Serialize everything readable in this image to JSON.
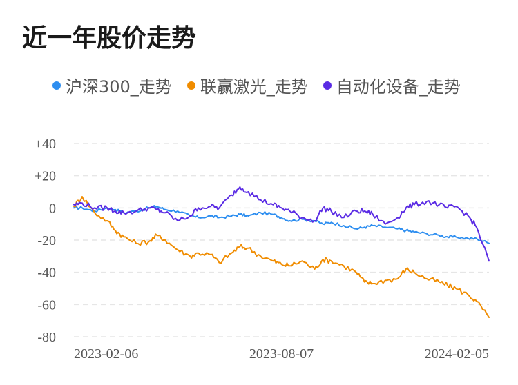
{
  "title": "近一年股价走势",
  "colors": {
    "series_0": "#2d8ef0",
    "series_1": "#f08c00",
    "series_2": "#5a2be4",
    "grid": "#e6e6e6"
  },
  "chart_data": {
    "type": "line",
    "title": "近一年股价走势",
    "xlabel": "",
    "ylabel": "",
    "x_ticks": [
      "2023-02-06",
      "2023-08-07",
      "2024-02-05"
    ],
    "x": [
      0,
      0.02,
      0.05,
      0.08,
      0.1,
      0.12,
      0.15,
      0.18,
      0.2,
      0.22,
      0.25,
      0.28,
      0.3,
      0.33,
      0.35,
      0.38,
      0.4,
      0.42,
      0.45,
      0.48,
      0.5,
      0.52,
      0.55,
      0.58,
      0.6,
      0.62,
      0.65,
      0.68,
      0.7,
      0.72,
      0.75,
      0.78,
      0.8,
      0.82,
      0.85,
      0.88,
      0.9,
      0.92,
      0.95,
      0.97,
      1.0
    ],
    "y_ticks": [
      "+40",
      "+20",
      "0",
      "-20",
      "-40",
      "-60",
      "-80"
    ],
    "ylim": [
      -80,
      40
    ],
    "grid": true,
    "legend_position": "top",
    "series": [
      {
        "name": "沪深300_走势",
        "values": [
          0,
          0,
          -2,
          0,
          -1,
          -3,
          -2,
          0,
          1,
          -1,
          -2,
          -5,
          -6,
          -5,
          -6,
          -5,
          -4,
          -5,
          -3,
          -4,
          -6,
          -8,
          -7,
          -8,
          -10,
          -9,
          -11,
          -13,
          -12,
          -11,
          -12,
          -13,
          -14,
          -15,
          -16,
          -17,
          -18,
          -18,
          -19,
          -19,
          -22
        ]
      },
      {
        "name": "联赢激光_走势",
        "values": [
          1,
          7,
          -3,
          -8,
          -14,
          -18,
          -22,
          -21,
          -17,
          -20,
          -26,
          -30,
          -28,
          -29,
          -34,
          -28,
          -24,
          -25,
          -30,
          -33,
          -35,
          -36,
          -33,
          -38,
          -32,
          -33,
          -36,
          -40,
          -46,
          -47,
          -45,
          -44,
          -38,
          -40,
          -44,
          -46,
          -48,
          -50,
          -54,
          -58,
          -68
        ]
      },
      {
        "name": "自动化设备_走势",
        "values": [
          2,
          3,
          0,
          0,
          -2,
          -3,
          -2,
          0,
          -1,
          -3,
          -8,
          -5,
          0,
          1,
          0,
          8,
          13,
          10,
          5,
          2,
          0,
          -2,
          -6,
          -8,
          0,
          -2,
          -6,
          -2,
          -2,
          -4,
          -10,
          -6,
          0,
          2,
          4,
          2,
          0,
          1,
          -5,
          -12,
          -33
        ]
      }
    ]
  }
}
